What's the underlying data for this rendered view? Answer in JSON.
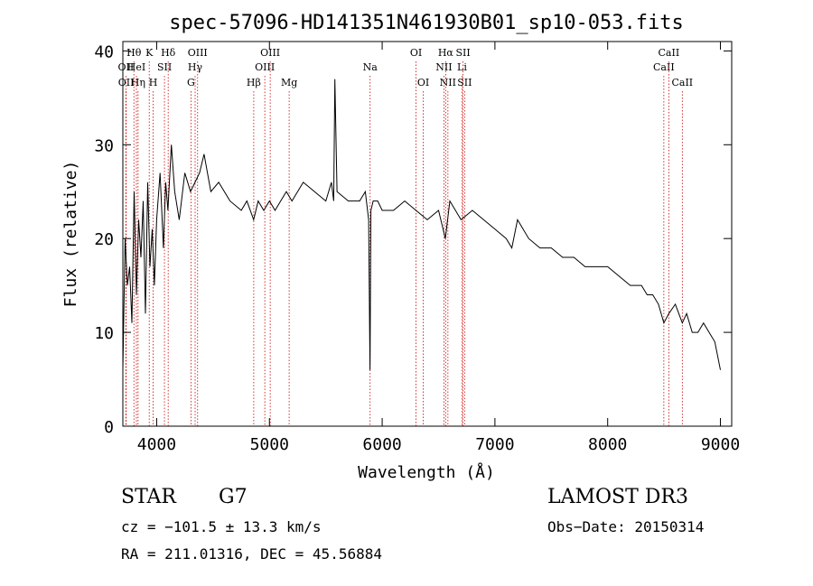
{
  "chart_data": {
    "type": "line",
    "title": "spec-57096-HD141351N461930B01_sp10-053.fits",
    "xlabel": "Wavelength (Å)",
    "ylabel": "Flux (relative)",
    "xlim": [
      3700,
      9100
    ],
    "ylim": [
      0,
      41
    ],
    "xticks": [
      4000,
      5000,
      6000,
      7000,
      8000,
      9000
    ],
    "yticks": [
      0,
      10,
      20,
      30,
      40
    ],
    "grid": false,
    "series": [
      {
        "name": "flux",
        "x": [
          3700,
          3720,
          3740,
          3760,
          3780,
          3800,
          3820,
          3840,
          3860,
          3880,
          3900,
          3920,
          3940,
          3960,
          3980,
          4000,
          4030,
          4060,
          4080,
          4100,
          4130,
          4160,
          4200,
          4250,
          4300,
          4340,
          4380,
          4420,
          4480,
          4550,
          4650,
          4750,
          4800,
          4860,
          4900,
          4950,
          5000,
          5050,
          5100,
          5150,
          5200,
          5300,
          5400,
          5500,
          5550,
          5570,
          5580,
          5600,
          5700,
          5800,
          5850,
          5880,
          5892,
          5900,
          5920,
          5960,
          6000,
          6100,
          6200,
          6300,
          6400,
          6500,
          6560,
          6600,
          6650,
          6700,
          6800,
          6900,
          7000,
          7100,
          7150,
          7200,
          7250,
          7300,
          7400,
          7500,
          7600,
          7700,
          7800,
          7900,
          8000,
          8100,
          8200,
          8300,
          8350,
          8400,
          8450,
          8498,
          8542,
          8600,
          8662,
          8700,
          8750,
          8800,
          8850,
          8900,
          8950,
          9000
        ],
        "y": [
          6,
          20,
          15,
          17,
          11,
          25,
          14,
          22,
          18,
          24,
          12,
          26,
          17,
          21,
          15,
          22,
          27,
          19,
          26,
          23,
          30,
          25,
          22,
          27,
          25,
          26,
          27,
          29,
          25,
          26,
          24,
          23,
          24,
          22,
          24,
          23,
          24,
          23,
          24,
          25,
          24,
          26,
          25,
          24,
          26,
          24,
          37,
          25,
          24,
          24,
          25,
          22,
          6,
          23,
          24,
          24,
          23,
          23,
          24,
          23,
          22,
          23,
          20,
          24,
          23,
          22,
          23,
          22,
          21,
          20,
          19,
          22,
          21,
          20,
          19,
          19,
          18,
          18,
          17,
          17,
          17,
          16,
          15,
          15,
          14,
          14,
          13,
          11,
          12,
          13,
          11,
          12,
          10,
          10,
          11,
          10,
          9,
          6
        ]
      }
    ],
    "lines": [
      {
        "label": "OII",
        "w": 3727,
        "row": 2
      },
      {
        "label": "OII",
        "w": 3729,
        "row": 3
      },
      {
        "label": "Hθ",
        "w": 3798,
        "row": 1
      },
      {
        "label": "HeI",
        "w": 3820,
        "row": 2
      },
      {
        "label": "Hη",
        "w": 3835,
        "row": 3
      },
      {
        "label": "K",
        "w": 3934,
        "row": 1
      },
      {
        "label": "SII",
        "w": 4069,
        "row": 2
      },
      {
        "label": "H",
        "w": 3969,
        "row": 3
      },
      {
        "label": "Hδ",
        "w": 4102,
        "row": 1
      },
      {
        "label": "OIII",
        "w": 4363,
        "row": 1
      },
      {
        "label": "Hγ",
        "w": 4341,
        "row": 2
      },
      {
        "label": "G",
        "w": 4304,
        "row": 3
      },
      {
        "label": "Hβ",
        "w": 4861,
        "row": 3
      },
      {
        "label": "OIII",
        "w": 4959,
        "row": 2
      },
      {
        "label": "OIII",
        "w": 5007,
        "row": 1
      },
      {
        "label": "Mg",
        "w": 5175,
        "row": 3
      },
      {
        "label": "Na",
        "w": 5893,
        "row": 2
      },
      {
        "label": "OI",
        "w": 6300,
        "row": 1
      },
      {
        "label": "OI",
        "w": 6364,
        "row": 3
      },
      {
        "label": "NII",
        "w": 6548,
        "row": 2
      },
      {
        "label": "Hα",
        "w": 6563,
        "row": 1
      },
      {
        "label": "NII",
        "w": 6583,
        "row": 3
      },
      {
        "label": "Li",
        "w": 6708,
        "row": 2
      },
      {
        "label": "SII",
        "w": 6717,
        "row": 1
      },
      {
        "label": "SII",
        "w": 6731,
        "row": 3
      },
      {
        "label": "CaII",
        "w": 8498,
        "row": 2
      },
      {
        "label": "CaII",
        "w": 8542,
        "row": 1
      },
      {
        "label": "CaII",
        "w": 8662,
        "row": 3
      }
    ]
  },
  "info": {
    "object_class": "STAR",
    "subclass": "G7",
    "survey": "LAMOST DR3",
    "cz": "cz = −101.5 ± 13.3 km/s",
    "obs_date": "Obs−Date: 20150314",
    "coords": "RA = 211.01316, DEC =  45.56884"
  },
  "colors": {
    "spectrum": "#000000",
    "line_marker": "#cc0000",
    "axis": "#000000"
  }
}
